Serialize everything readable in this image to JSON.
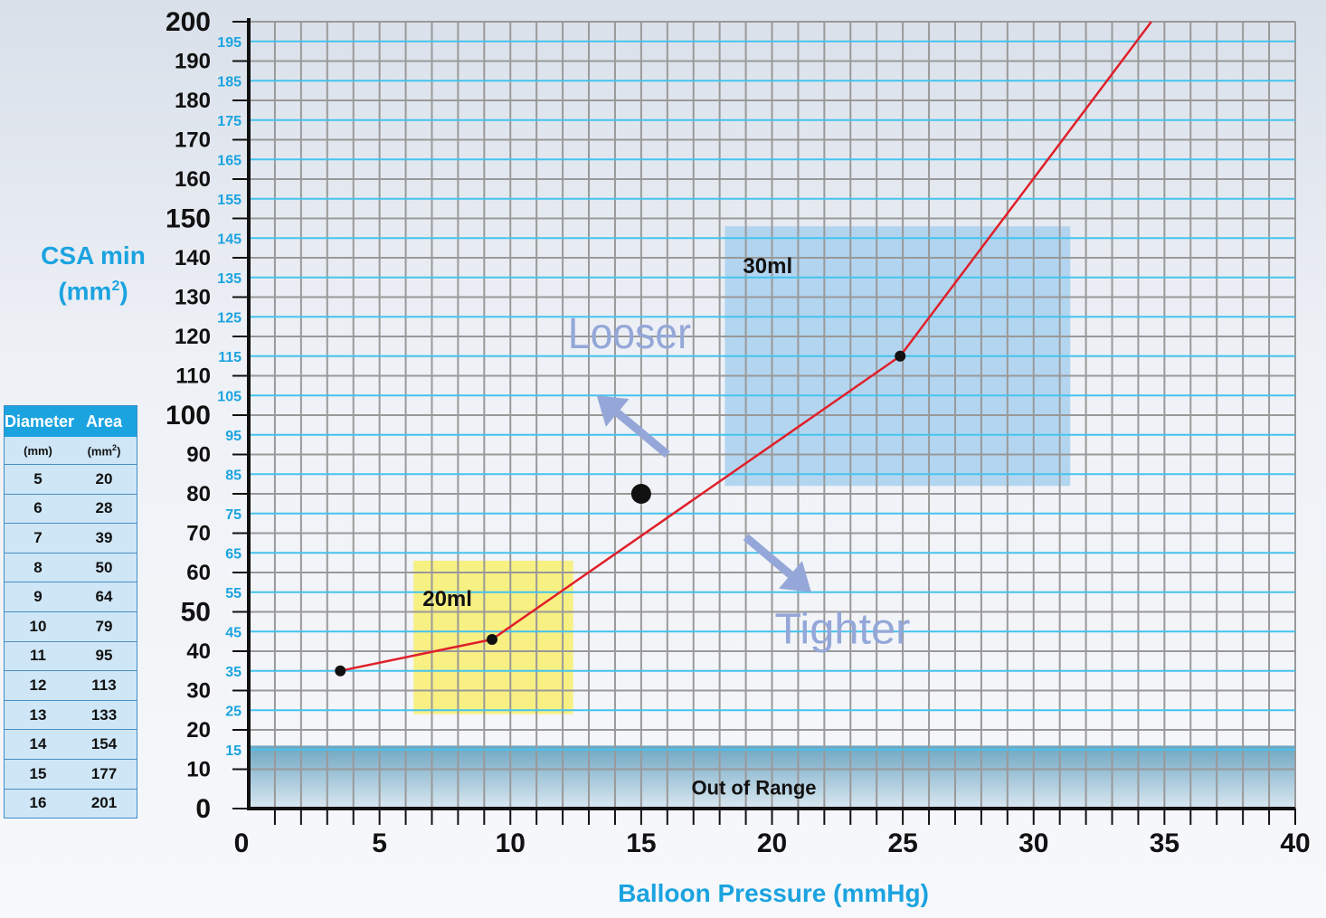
{
  "chart_data": {
    "type": "line",
    "xlabel": "Balloon Pressure (mmHg)",
    "ylabel_line1": "CSA min",
    "ylabel_line2": "(mm",
    "ylabel_sup": "2",
    "ylabel_close": ")",
    "xlim": [
      0,
      40
    ],
    "ylim": [
      0,
      200
    ],
    "x_ticks": [
      0,
      5,
      10,
      15,
      20,
      25,
      30,
      35,
      40
    ],
    "y_ticks_major": [
      0,
      10,
      20,
      30,
      40,
      50,
      60,
      70,
      80,
      90,
      100,
      110,
      120,
      130,
      140,
      150,
      160,
      170,
      180,
      190,
      200
    ],
    "y_ticks_minor": [
      15,
      25,
      35,
      45,
      55,
      65,
      75,
      85,
      95,
      105,
      115,
      125,
      135,
      145,
      155,
      165,
      175,
      185,
      195
    ],
    "grid": true,
    "series": [
      {
        "color": "#e0202a",
        "x": [
          3.5,
          9.3,
          24.9,
          34.5
        ],
        "y": [
          35,
          43,
          115,
          200
        ],
        "markers_at": [
          0,
          1,
          2
        ]
      }
    ],
    "extra_point": {
      "x": 15,
      "y": 80
    },
    "regions": [
      {
        "label": "20ml",
        "x0": 6.3,
        "x1": 12.4,
        "y0": 24,
        "y1": 63,
        "color": "#f8ef6e"
      },
      {
        "label": "30ml",
        "x0": 18.2,
        "x1": 31.4,
        "y0": 82,
        "y1": 148,
        "color": "#a8d0ee"
      },
      {
        "label": "Out of Range",
        "x0": 0,
        "x1": 40,
        "y0": 0,
        "y1": 16,
        "color": "#6aa3bf"
      }
    ],
    "annotations": [
      {
        "text": "Looser",
        "x": 12.2,
        "y": 117
      },
      {
        "text": "Tighter",
        "x": 20.1,
        "y": 42
      }
    ],
    "arrows": [
      {
        "from": [
          16.0,
          90.0
        ],
        "to": [
          13.3,
          105.0
        ]
      },
      {
        "from": [
          19.0,
          69.0
        ],
        "to": [
          21.5,
          55.0
        ]
      }
    ]
  },
  "legend_table": {
    "header": [
      "Diameter",
      "Area"
    ],
    "units": [
      "(mm)",
      "(mm",
      "2",
      ")"
    ],
    "rows": [
      [
        "5",
        "20"
      ],
      [
        "6",
        "28"
      ],
      [
        "7",
        "39"
      ],
      [
        "8",
        "50"
      ],
      [
        "9",
        "64"
      ],
      [
        "10",
        "79"
      ],
      [
        "11",
        "95"
      ],
      [
        "12",
        "113"
      ],
      [
        "13",
        "133"
      ],
      [
        "14",
        "154"
      ],
      [
        "15",
        "177"
      ],
      [
        "16",
        "201"
      ]
    ]
  },
  "colors": {
    "accent": "#1ba3e0",
    "grid_major": "#999999",
    "grid_minor": "#45c3ee",
    "line": "#e0202a",
    "arrow": "#94a7d8"
  }
}
